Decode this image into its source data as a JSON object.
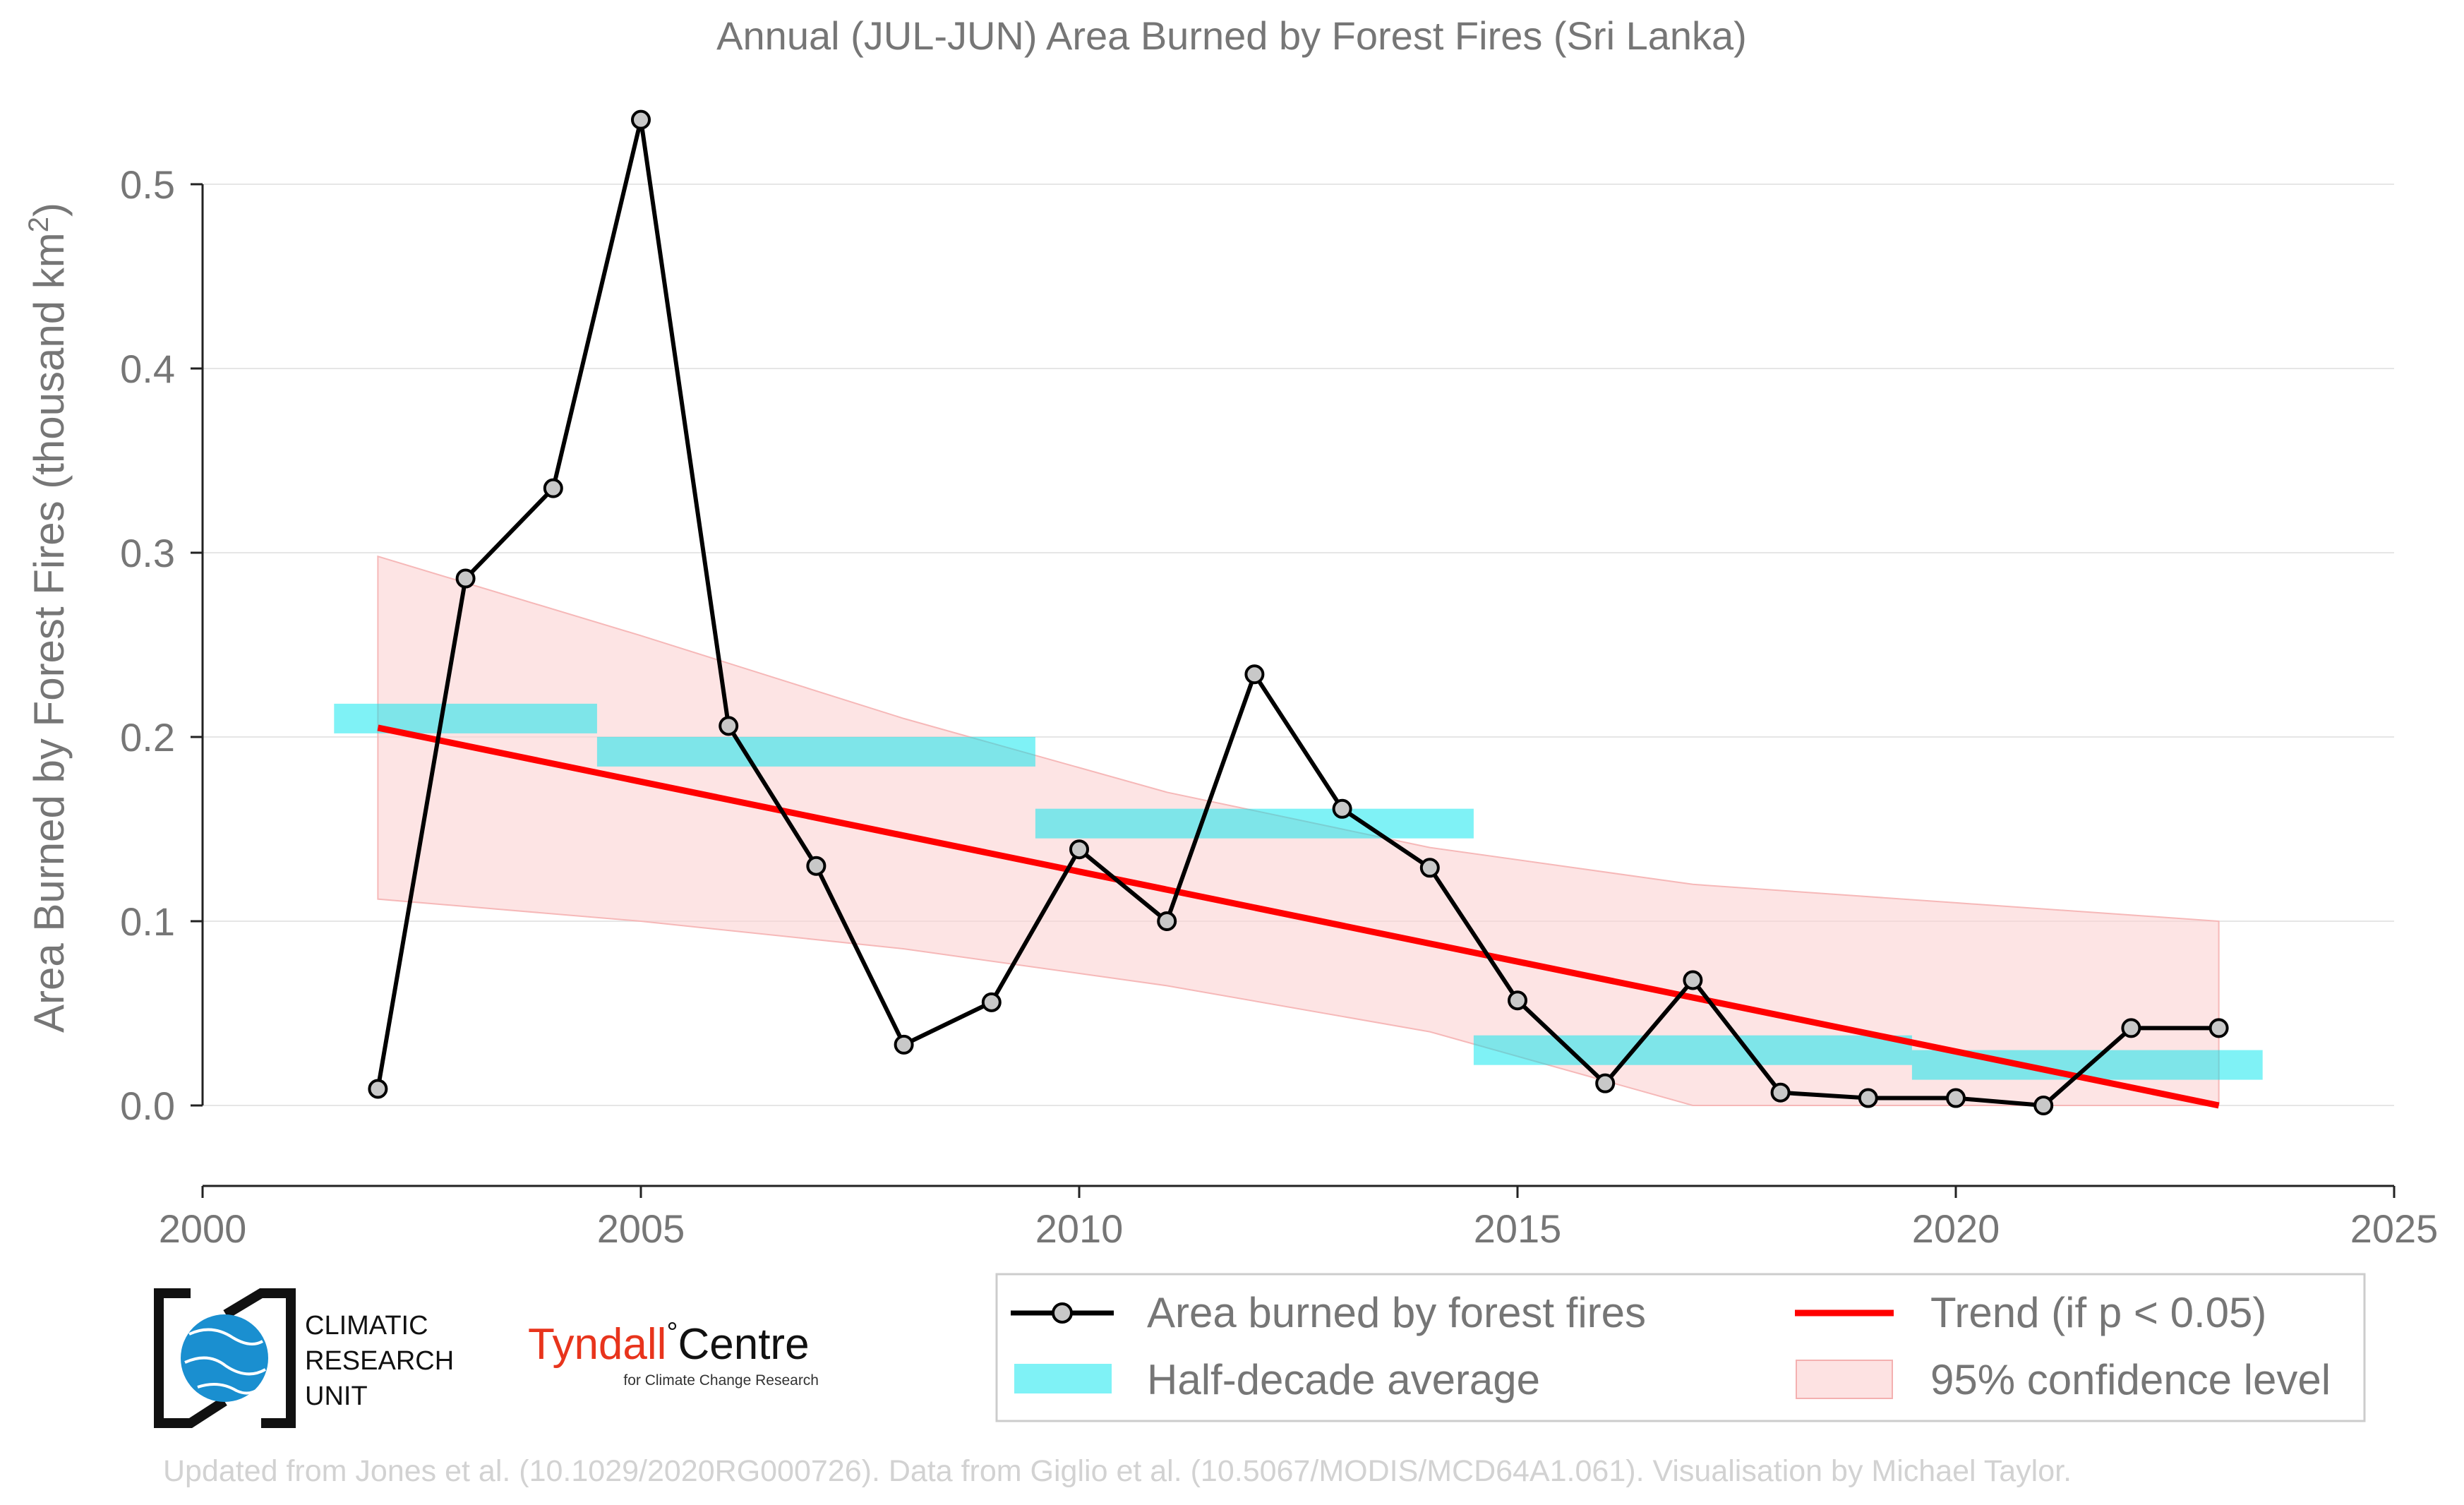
{
  "chart_data": {
    "type": "line",
    "title": "Annual (JUL-JUN) Area Burned by Forest Fires (Sri Lanka)",
    "xlabel": "",
    "ylabel": "Area Burned by Forest Fires (thousand km²)",
    "ylabel_parts": {
      "main": "Area Burned by Forest Fires (thousand km",
      "sup": "2",
      "end": ")"
    },
    "xlim": [
      2000,
      2025
    ],
    "ylim": [
      -0.04,
      0.56
    ],
    "x_ticks": [
      2000,
      2005,
      2010,
      2015,
      2020,
      2025
    ],
    "x_tick_labels": [
      "2000",
      "2005",
      "2010",
      "2015",
      "2020",
      "2025"
    ],
    "y_ticks": [
      0.0,
      0.1,
      0.2,
      0.3,
      0.4,
      0.5
    ],
    "y_tick_labels": [
      "0.0",
      "0.1",
      "0.2",
      "0.3",
      "0.4",
      "0.5"
    ],
    "grid": "horizontal",
    "legend_position": "bottom-right",
    "series": [
      {
        "name": "Area burned by forest fires",
        "kind": "line-markers",
        "color": "#000000",
        "marker_fill": "#c8c8c8",
        "x": [
          2002,
          2003,
          2004,
          2005,
          2006,
          2007,
          2008,
          2009,
          2010,
          2011,
          2012,
          2013,
          2014,
          2015,
          2016,
          2017,
          2018,
          2019,
          2020,
          2021,
          2022,
          2023
        ],
        "y": [
          0.009,
          0.286,
          0.335,
          0.535,
          0.206,
          0.13,
          0.033,
          0.056,
          0.139,
          0.1,
          0.234,
          0.161,
          0.129,
          0.057,
          0.012,
          0.068,
          0.007,
          0.004,
          0.004,
          0.0,
          0.042,
          0.042
        ]
      },
      {
        "name": "Half-decade average",
        "kind": "step-bars",
        "color": "#00e5ee",
        "segments": [
          {
            "x0": 2001.5,
            "x1": 2004.5,
            "y": 0.21
          },
          {
            "x0": 2004.5,
            "x1": 2009.5,
            "y": 0.192
          },
          {
            "x0": 2009.5,
            "x1": 2014.5,
            "y": 0.153
          },
          {
            "x0": 2014.5,
            "x1": 2019.5,
            "y": 0.03
          },
          {
            "x0": 2019.5,
            "x1": 2023.5,
            "y": 0.022
          }
        ]
      },
      {
        "name": "Trend (if p < 0.05)",
        "kind": "trend-line",
        "color": "#ff0000",
        "x": [
          2002,
          2023
        ],
        "y": [
          0.205,
          0.0
        ]
      },
      {
        "name": "95% confidence level",
        "kind": "band",
        "color": "#fcd2d2",
        "x": [
          2002,
          2005,
          2008,
          2011,
          2014,
          2017,
          2020,
          2023
        ],
        "upper": [
          0.298,
          0.255,
          0.21,
          0.17,
          0.14,
          0.12,
          0.11,
          0.1
        ],
        "lower": [
          0.112,
          0.1,
          0.085,
          0.065,
          0.04,
          0.0,
          0.0,
          0.0
        ]
      }
    ]
  },
  "logos": {
    "cru_lines": [
      "CLIMATIC",
      "RESEARCH",
      "UNIT"
    ],
    "tyndall_name": "Tyndall",
    "tyndall_degree": "°",
    "tyndall_centre": "Centre",
    "tyndall_sub": "for Climate Change Research"
  },
  "footer": "Updated from Jones et al. (10.1029/2020RG000726). Data from Giglio et al. (10.5067/MODIS/MCD64A1.061). Visualisation by Michael Taylor.",
  "colors": {
    "axis_text": "#767676",
    "grid": "#e6e6e6",
    "tyndall_red": "#e8341c",
    "cru_blue": "#1a8fd0"
  }
}
